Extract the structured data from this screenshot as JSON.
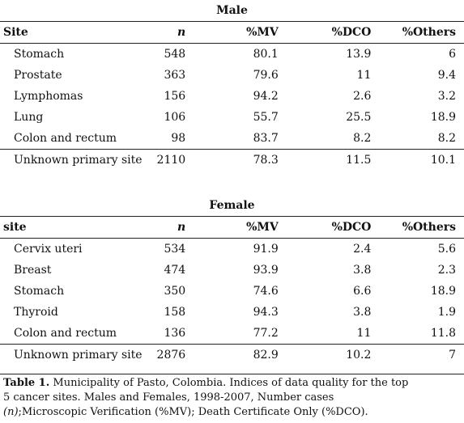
{
  "male": {
    "title": "Male",
    "headers": [
      "Site",
      "n",
      "%MV",
      "%DCO",
      "%Others"
    ],
    "rows": [
      [
        "Stomach",
        "548",
        "80.1",
        "13.9",
        "6"
      ],
      [
        "Prostate",
        "363",
        "79.6",
        "11",
        "9.4"
      ],
      [
        "Lymphomas",
        "156",
        "94.2",
        "2.6",
        "3.2"
      ],
      [
        "Lung",
        "106",
        "55.7",
        "25.5",
        "18.9"
      ],
      [
        "Colon and rectum",
        "98",
        "83.7",
        "8.2",
        "8.2"
      ]
    ],
    "unknown": [
      "Unknown primary site",
      "2110",
      "78.3",
      "11.5",
      "10.1"
    ]
  },
  "female": {
    "title": "Female",
    "headers": [
      "site",
      "n",
      "%MV",
      "%DCO",
      "%Others"
    ],
    "rows": [
      [
        "Cervix uteri",
        "534",
        "91.9",
        "2.4",
        "5.6"
      ],
      [
        "Breast",
        "474",
        "93.9",
        "3.8",
        "2.3"
      ],
      [
        "Stomach",
        "350",
        "74.6",
        "6.6",
        "18.9"
      ],
      [
        "Thyroid",
        "158",
        "94.3",
        "3.8",
        "1.9"
      ],
      [
        "Colon and rectum",
        "136",
        "77.2",
        "11",
        "11.8"
      ]
    ],
    "unknown": [
      "Unknown primary site",
      "2876",
      "82.9",
      "10.2",
      "7"
    ]
  },
  "caption": {
    "label": "Table 1.",
    "line1": " Municipality of Pasto, Colombia. Indices of data quality for the top",
    "line2": "5 cancer sites. Males and Females, 1998-2007, Number cases",
    "n_symbol": "(n)",
    "line3": ";Microscopic Verification  (%MV); Death Certificate Only  (%DCO)."
  }
}
